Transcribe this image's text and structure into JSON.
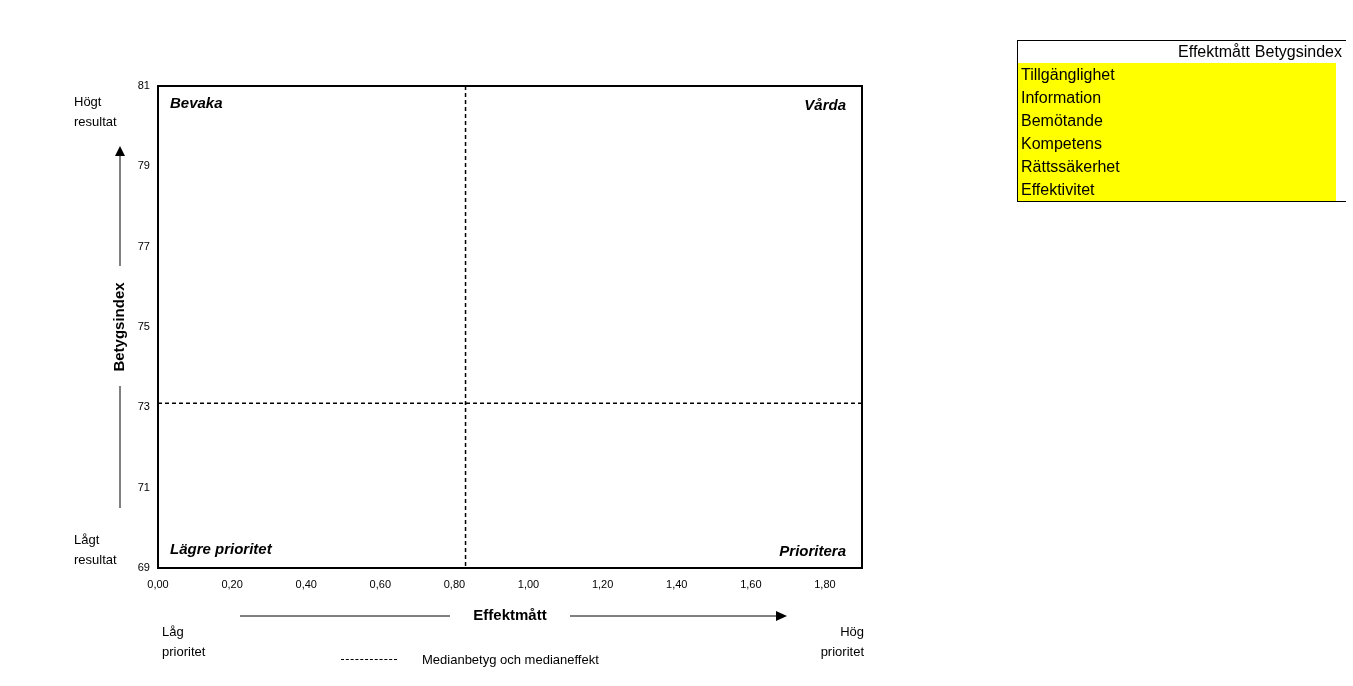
{
  "chart_data": [
    {
      "type": "scatter",
      "xlabel": "Effektmått",
      "ylabel": "Betygsindex",
      "xlim": [
        0,
        1.9
      ],
      "xticks": [
        {
          "value": 0,
          "label": "0,00"
        },
        {
          "value": 0.2,
          "label": "0,20"
        },
        {
          "value": 0.4,
          "label": "0,40"
        },
        {
          "value": 0.6,
          "label": "0,60"
        },
        {
          "value": 0.8,
          "label": "0,80"
        },
        {
          "value": 1.0,
          "label": "1,00"
        },
        {
          "value": 1.2,
          "label": "1,20"
        },
        {
          "value": 1.4,
          "label": "1,40"
        },
        {
          "value": 1.6,
          "label": "1,60"
        },
        {
          "value": 1.8,
          "label": "1,80"
        }
      ],
      "ylim": [
        69,
        81
      ],
      "yticks": [
        69,
        71,
        73,
        75,
        77,
        79,
        81
      ],
      "ref_lines": [
        {
          "axis": "x",
          "value": 0.83,
          "label": "Medianbetyg och medianeffekt",
          "line_style": "dashed",
          "color": "#000000"
        },
        {
          "axis": "y",
          "value": 73.1,
          "line_style": "dashed",
          "color": "#000000"
        }
      ],
      "legend": "bottom",
      "annotations": [
        "Bevaka",
        "Vårda",
        "Lägre prioritet",
        "Prioritera",
        "Högt resultat",
        "Lågt resultat",
        "Låg prioritet",
        "Hög prioritet"
      ]
    },
    {
      "type": "other",
      "annotations": [
        "Effektmått",
        "Betygsindex"
      ],
      "categories": [
        "Tillgänglighet",
        "Information",
        "Bemötande",
        "Kompetens",
        "Rättssäkerhet",
        "Effektivitet"
      ],
      "color": "#ffff00"
    }
  ]
}
